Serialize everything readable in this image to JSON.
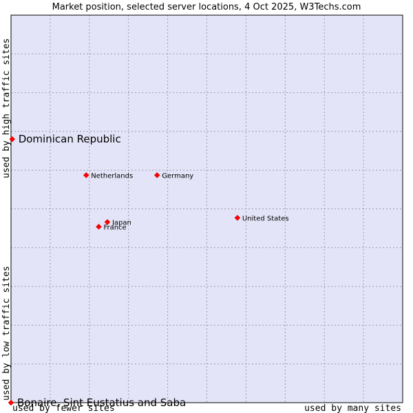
{
  "chart_data": {
    "type": "scatter",
    "title": "Market position, selected server locations, 4 Oct 2025, W3Techs.com",
    "xlabel_left": "used by fewer sites",
    "xlabel_right": "used by many sites",
    "ylabel_bottom": "used by low traffic sites",
    "ylabel_top": "used by high traffic sites",
    "xlim": [
      0,
      100
    ],
    "ylim": [
      0,
      100
    ],
    "grid": true,
    "points": [
      {
        "name": "Dominican Republic",
        "x": 0.3,
        "y": 68,
        "label_size": "large"
      },
      {
        "name": "Netherlands",
        "x": 19.2,
        "y": 58.7,
        "label_size": "small"
      },
      {
        "name": "Germany",
        "x": 37.3,
        "y": 58.7,
        "label_size": "small"
      },
      {
        "name": "United States",
        "x": 57.8,
        "y": 47.7,
        "label_size": "small"
      },
      {
        "name": "Japan",
        "x": 24.6,
        "y": 46.6,
        "label_size": "small"
      },
      {
        "name": "France",
        "x": 22.4,
        "y": 45.4,
        "label_size": "small"
      },
      {
        "name": "Bonaire, Sint Eustatius and Saba",
        "x": 0,
        "y": 0,
        "label_size": "large"
      }
    ],
    "colors": {
      "plot_bg": "#e4e4f8",
      "marker": "#ff0000",
      "grid": "#9a9aaa"
    }
  }
}
